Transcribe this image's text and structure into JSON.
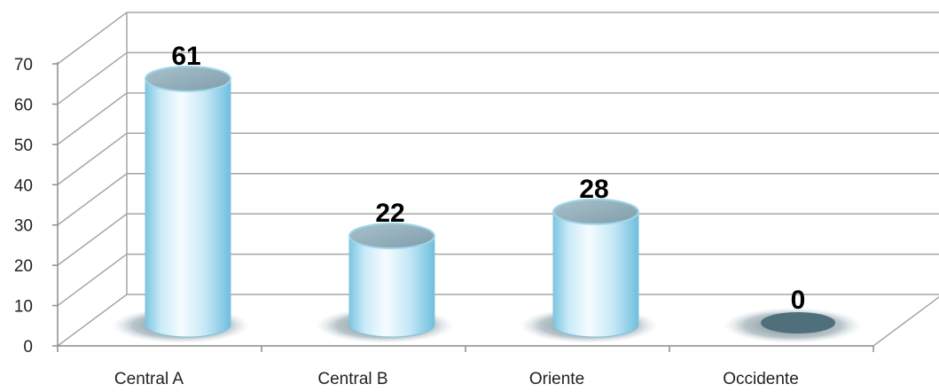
{
  "chart_data": {
    "type": "bar",
    "style": "3d-cylinder",
    "categories": [
      "Central A",
      "Central B",
      "Oriente",
      "Occidente"
    ],
    "values": [
      61,
      22,
      28,
      0
    ],
    "data_labels": [
      "61",
      "22",
      "28",
      "0"
    ],
    "ylim": [
      0,
      70
    ],
    "yticks": [
      "0",
      "10",
      "20",
      "30",
      "40",
      "50",
      "60",
      "70"
    ],
    "grid": true,
    "legend": "none",
    "colors": {
      "bar_light": "#f4fbff",
      "bar_mid": "#b9e2f3",
      "bar_dark": "#74c3e0",
      "bar_top": "#8aa7b4",
      "shadow": "#6b7f87",
      "zero_disc": "#4f6f7a",
      "grid": "#a6a6a6",
      "axis": "#8c8c8c"
    }
  }
}
